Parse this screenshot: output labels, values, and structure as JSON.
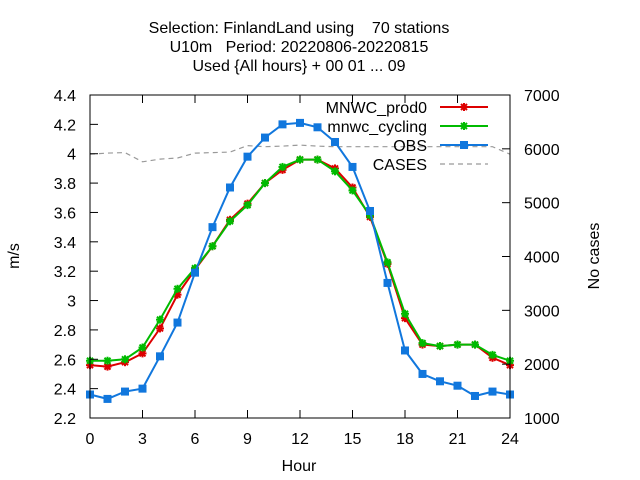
{
  "chart_data": {
    "type": "line",
    "title": {
      "line1": "Selection: FinlandLand using    70 stations",
      "line2": "U10m   Period: 20220806-20220815",
      "line3": "Used {All hours} + 00 01 ... 09"
    },
    "xlabel": "Hour",
    "ylabel": "m/s",
    "y2label": "No cases",
    "xlim": [
      0,
      24
    ],
    "ylim": [
      2.2,
      4.4
    ],
    "y2lim": [
      1000,
      7000
    ],
    "xticks": [
      "0",
      "3",
      "6",
      "9",
      "12",
      "15",
      "18",
      "21",
      "24"
    ],
    "yticks": [
      "2.2",
      "2.4",
      "2.6",
      "2.8",
      "3",
      "3.2",
      "3.4",
      "3.6",
      "3.8",
      "4",
      "4.2",
      "4.4"
    ],
    "y2ticks": [
      "1000",
      "2000",
      "3000",
      "4000",
      "5000",
      "6000",
      "7000"
    ],
    "legend_position": "top-right",
    "grid": false,
    "x": [
      0,
      1,
      2,
      3,
      4,
      5,
      6,
      7,
      8,
      9,
      10,
      11,
      12,
      13,
      14,
      15,
      16,
      17,
      18,
      19,
      20,
      21,
      22,
      23,
      24
    ],
    "series": [
      {
        "name": "MNWC_prod0",
        "color": "#dd0000",
        "marker": "star",
        "axis": "y",
        "values": [
          2.56,
          2.55,
          2.58,
          2.64,
          2.81,
          3.04,
          3.21,
          3.37,
          3.55,
          3.66,
          3.8,
          3.89,
          3.96,
          3.96,
          3.9,
          3.77,
          3.57,
          3.25,
          2.88,
          2.7,
          2.69,
          2.7,
          2.7,
          2.61,
          2.56
        ]
      },
      {
        "name": "mnwc_cycling",
        "color": "#00bb00",
        "marker": "star",
        "axis": "y",
        "values": [
          2.59,
          2.59,
          2.6,
          2.68,
          2.87,
          3.08,
          3.22,
          3.37,
          3.54,
          3.65,
          3.8,
          3.91,
          3.96,
          3.96,
          3.88,
          3.75,
          3.58,
          3.26,
          2.91,
          2.71,
          2.69,
          2.7,
          2.7,
          2.63,
          2.59
        ]
      },
      {
        "name": "OBS",
        "color": "#1177dd",
        "marker": "square",
        "axis": "y",
        "values": [
          2.36,
          2.33,
          2.38,
          2.4,
          2.62,
          2.85,
          3.19,
          3.5,
          3.77,
          3.98,
          4.11,
          4.2,
          4.21,
          4.18,
          4.08,
          3.91,
          3.61,
          3.12,
          2.66,
          2.5,
          2.45,
          2.42,
          2.35,
          2.38,
          2.36
        ]
      },
      {
        "name": "CASES",
        "color": "#999999",
        "marker": "none",
        "dash": true,
        "axis": "y2",
        "values": [
          5900,
          5920,
          5930,
          5760,
          5810,
          5830,
          5920,
          5930,
          5940,
          6060,
          6040,
          6050,
          6070,
          6050,
          6040,
          6040,
          6040,
          6040,
          6040,
          6040,
          6040,
          6040,
          6040,
          6040,
          5900
        ]
      }
    ]
  }
}
